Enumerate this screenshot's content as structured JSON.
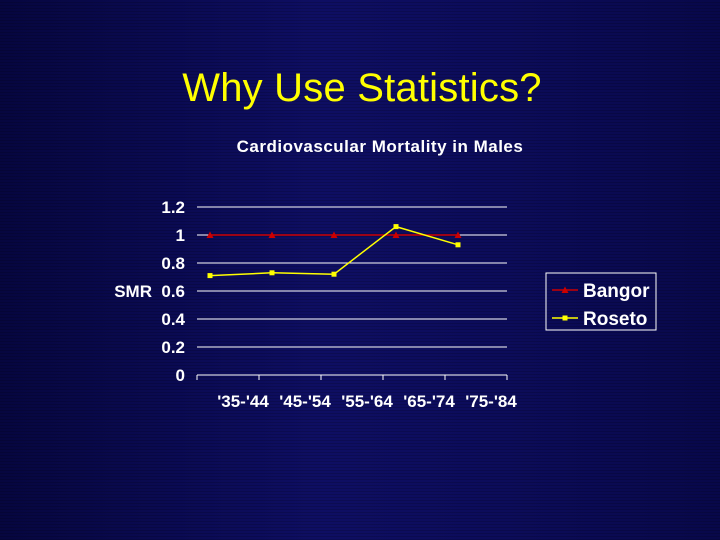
{
  "slide": {
    "title": "Why Use Statistics?"
  },
  "colors": {
    "background": "#0c0c5e",
    "title": "#ffff00",
    "text": "#ffffff",
    "bangor": "#cc0000",
    "roseto": "#ffff00"
  },
  "chart_data": {
    "type": "line",
    "title": "Cardiovascular Mortality in Males",
    "xlabel": "",
    "ylabel": "SMR",
    "categories": [
      "'35-'44",
      "'45-'54",
      "'55-'64",
      "'65-'74",
      "'75-'84"
    ],
    "ylim": [
      0,
      1.2
    ],
    "yticks": [
      "0",
      "0.2",
      "0.4",
      "0.6",
      "0.8",
      "1",
      "1.2"
    ],
    "grid": true,
    "legend_position": "right",
    "series": [
      {
        "name": "Bangor",
        "values": [
          1.0,
          1.0,
          1.0,
          1.0,
          1.0
        ],
        "color": "#cc0000",
        "marker": "triangle"
      },
      {
        "name": "Roseto",
        "values": [
          0.71,
          0.73,
          0.72,
          1.06,
          0.93
        ],
        "color": "#ffff00",
        "marker": "square"
      }
    ]
  }
}
